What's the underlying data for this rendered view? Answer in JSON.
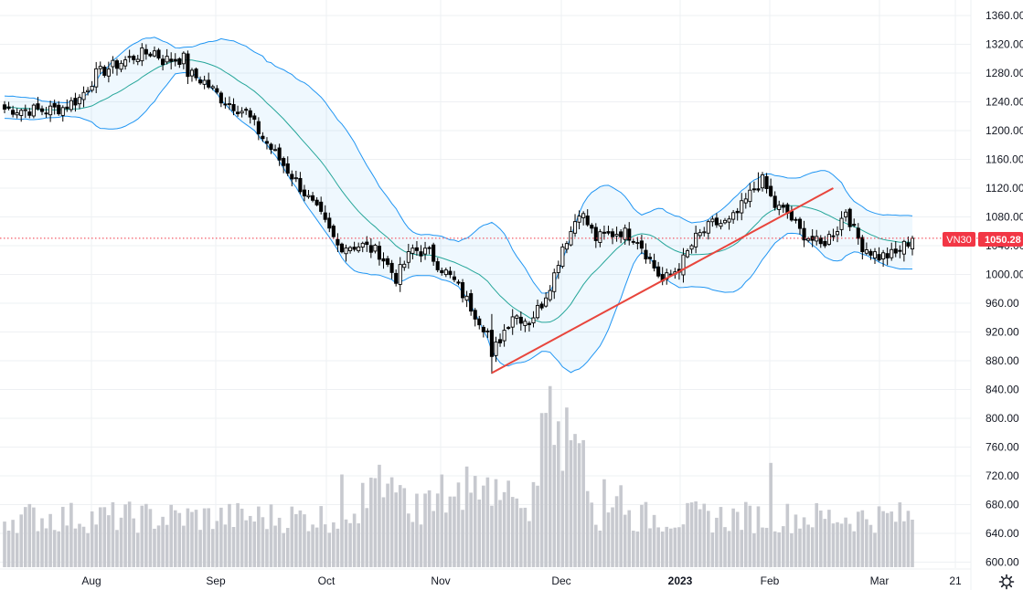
{
  "chart_data": {
    "type": "candlestick",
    "symbol": "VN30",
    "last_price": "1050.28",
    "price_axis": {
      "min": 580,
      "max": 1370,
      "ticks": [
        "1360.00",
        "1320.00",
        "1280.00",
        "1240.00",
        "1200.00",
        "1160.00",
        "1120.00",
        "1080.00",
        "1040.00",
        "1000.00",
        "960.00",
        "920.00",
        "880.00",
        "840.00",
        "800.00",
        "760.00",
        "720.00",
        "680.00",
        "640.00",
        "600.00"
      ]
    },
    "time_axis": [
      {
        "label": "Aug",
        "bold": false
      },
      {
        "label": "Sep",
        "bold": false
      },
      {
        "label": "Oct",
        "bold": false
      },
      {
        "label": "Nov",
        "bold": false
      },
      {
        "label": "Dec",
        "bold": false
      },
      {
        "label": "2023",
        "bold": true
      },
      {
        "label": "Feb",
        "bold": false
      },
      {
        "label": "Mar",
        "bold": false
      },
      {
        "label": "21",
        "bold": false
      }
    ],
    "close_anchors": [
      [
        0,
        1230
      ],
      [
        10,
        1228
      ],
      [
        14,
        1232
      ],
      [
        18,
        1245
      ],
      [
        22,
        1278
      ],
      [
        28,
        1295
      ],
      [
        32,
        1305
      ],
      [
        36,
        1310
      ],
      [
        38,
        1298
      ],
      [
        43,
        1300
      ],
      [
        44,
        1280
      ],
      [
        48,
        1268
      ],
      [
        52,
        1245
      ],
      [
        58,
        1225
      ],
      [
        62,
        1190
      ],
      [
        66,
        1160
      ],
      [
        70,
        1130
      ],
      [
        76,
        1080
      ],
      [
        80,
        1040
      ],
      [
        86,
        1040
      ],
      [
        90,
        1030
      ],
      [
        94,
        995
      ],
      [
        98,
        1035
      ],
      [
        102,
        1030
      ],
      [
        104,
        1015
      ],
      [
        108,
        990
      ],
      [
        112,
        955
      ],
      [
        116,
        920
      ],
      [
        117,
        880
      ],
      [
        118,
        900
      ],
      [
        122,
        945
      ],
      [
        126,
        935
      ],
      [
        129,
        960
      ],
      [
        132,
        1000
      ],
      [
        134,
        1040
      ],
      [
        136,
        1060
      ],
      [
        138,
        1090
      ],
      [
        142,
        1050
      ],
      [
        148,
        1060
      ],
      [
        152,
        1050
      ],
      [
        156,
        1010
      ],
      [
        158,
        990
      ],
      [
        162,
        1010
      ],
      [
        164,
        1030
      ],
      [
        166,
        1050
      ],
      [
        170,
        1070
      ],
      [
        174,
        1072
      ],
      [
        176,
        1085
      ],
      [
        180,
        1120
      ],
      [
        182,
        1130
      ],
      [
        185,
        1095
      ],
      [
        188,
        1085
      ],
      [
        191,
        1060
      ],
      [
        196,
        1040
      ],
      [
        200,
        1065
      ],
      [
        202,
        1090
      ],
      [
        204,
        1060
      ],
      [
        206,
        1040
      ],
      [
        210,
        1025
      ],
      [
        214,
        1028
      ],
      [
        216,
        1040
      ],
      [
        218,
        1050.28
      ]
    ],
    "bollinger_bands": {
      "period": 20,
      "stdev": 2
    },
    "trendline": {
      "from": {
        "bar": 117,
        "price": 863
      },
      "to": {
        "bar": 199,
        "price": 1120
      }
    },
    "volume": {
      "baseline": 593,
      "scale_axis": "price"
    }
  }
}
